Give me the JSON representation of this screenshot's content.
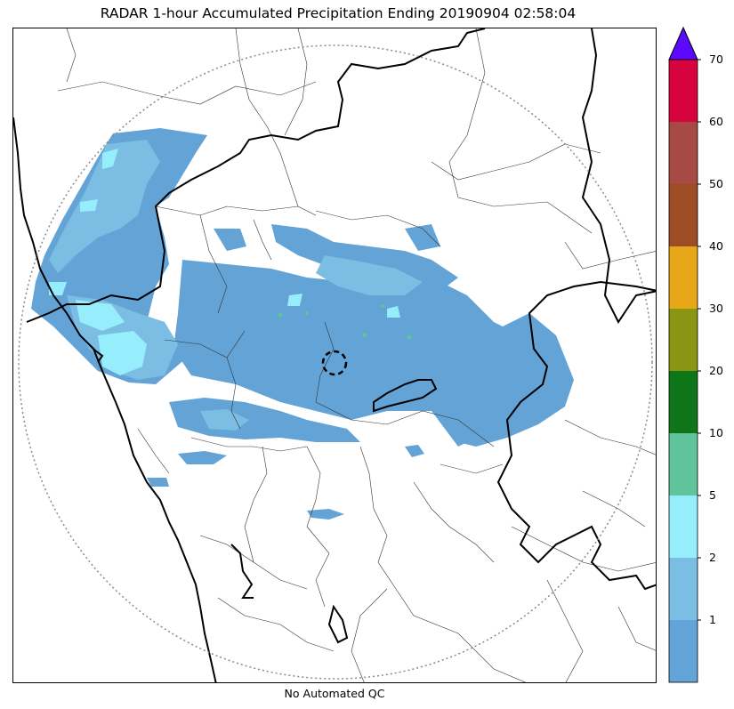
{
  "title": "RADAR 1-hour Accumulated Precipitation Ending 20190904 02:58:04",
  "footer": "No Automated QC",
  "colorbar": {
    "levels": [
      {
        "label": "",
        "color": "#63a3d6"
      },
      {
        "label": "1",
        "color": "#7bbde3"
      },
      {
        "label": "2",
        "color": "#96eefc"
      },
      {
        "label": "5",
        "color": "#5fc49b"
      },
      {
        "label": "10",
        "color": "#0f7519"
      },
      {
        "label": "20",
        "color": "#8a9514"
      },
      {
        "label": "30",
        "color": "#e8a619"
      },
      {
        "label": "40",
        "color": "#9d4d24"
      },
      {
        "label": "50",
        "color": "#a74a43"
      },
      {
        "label": "60",
        "color": "#d6033f"
      }
    ],
    "top_label": "70",
    "extend_color": "#5b0aff"
  }
}
